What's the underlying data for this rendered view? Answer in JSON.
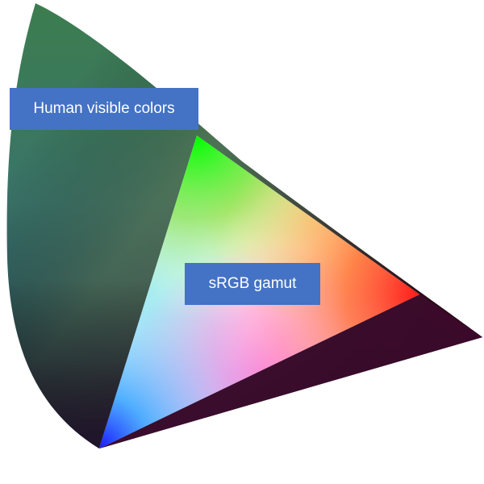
{
  "labels": {
    "visible": "Human visible colors",
    "srgb": "sRGB gamut"
  },
  "colors": {
    "label_box": "#4472c4",
    "visible_region_top": "#3a7a52",
    "visible_region_mid": "#3a7068",
    "visible_region_bottom_left": "#0e2436",
    "visible_region_right": "#4a0a22",
    "srgb_green": "#00ff00",
    "srgb_red": "#ff2a00",
    "srgb_blue": "#2a1aff",
    "srgb_center": "#ffffff"
  }
}
